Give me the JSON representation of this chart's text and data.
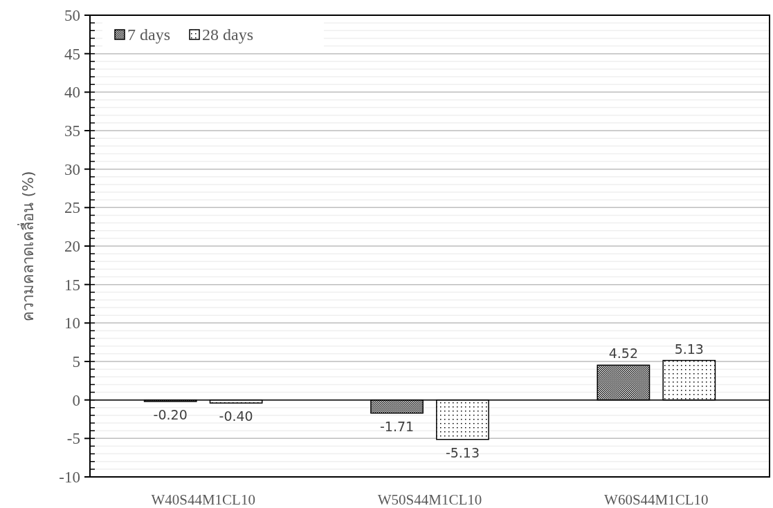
{
  "chart_data": {
    "type": "bar",
    "ylabel": "ความคลาดเคลื่อน (%)",
    "categories": [
      "W40S44M1CL10",
      "W50S44M1CL10",
      "W60S44M1CL10"
    ],
    "series": [
      {
        "name": "7 days",
        "color": "#000000",
        "values": [
          -0.2,
          -1.71,
          4.52
        ],
        "value_labels": [
          "-0.20",
          "-1.71",
          "4.52"
        ]
      },
      {
        "name": "28 days",
        "color": "#000000",
        "values": [
          -0.4,
          -5.13,
          5.13
        ],
        "value_labels": [
          "-0.40",
          "-5.13",
          "5.13"
        ]
      }
    ],
    "ylim": [
      -10,
      50
    ],
    "yticks": [
      -10,
      -5,
      0,
      5,
      10,
      15,
      20,
      25,
      30,
      35,
      40,
      45,
      50
    ],
    "grid": "y",
    "legend": "top left"
  }
}
